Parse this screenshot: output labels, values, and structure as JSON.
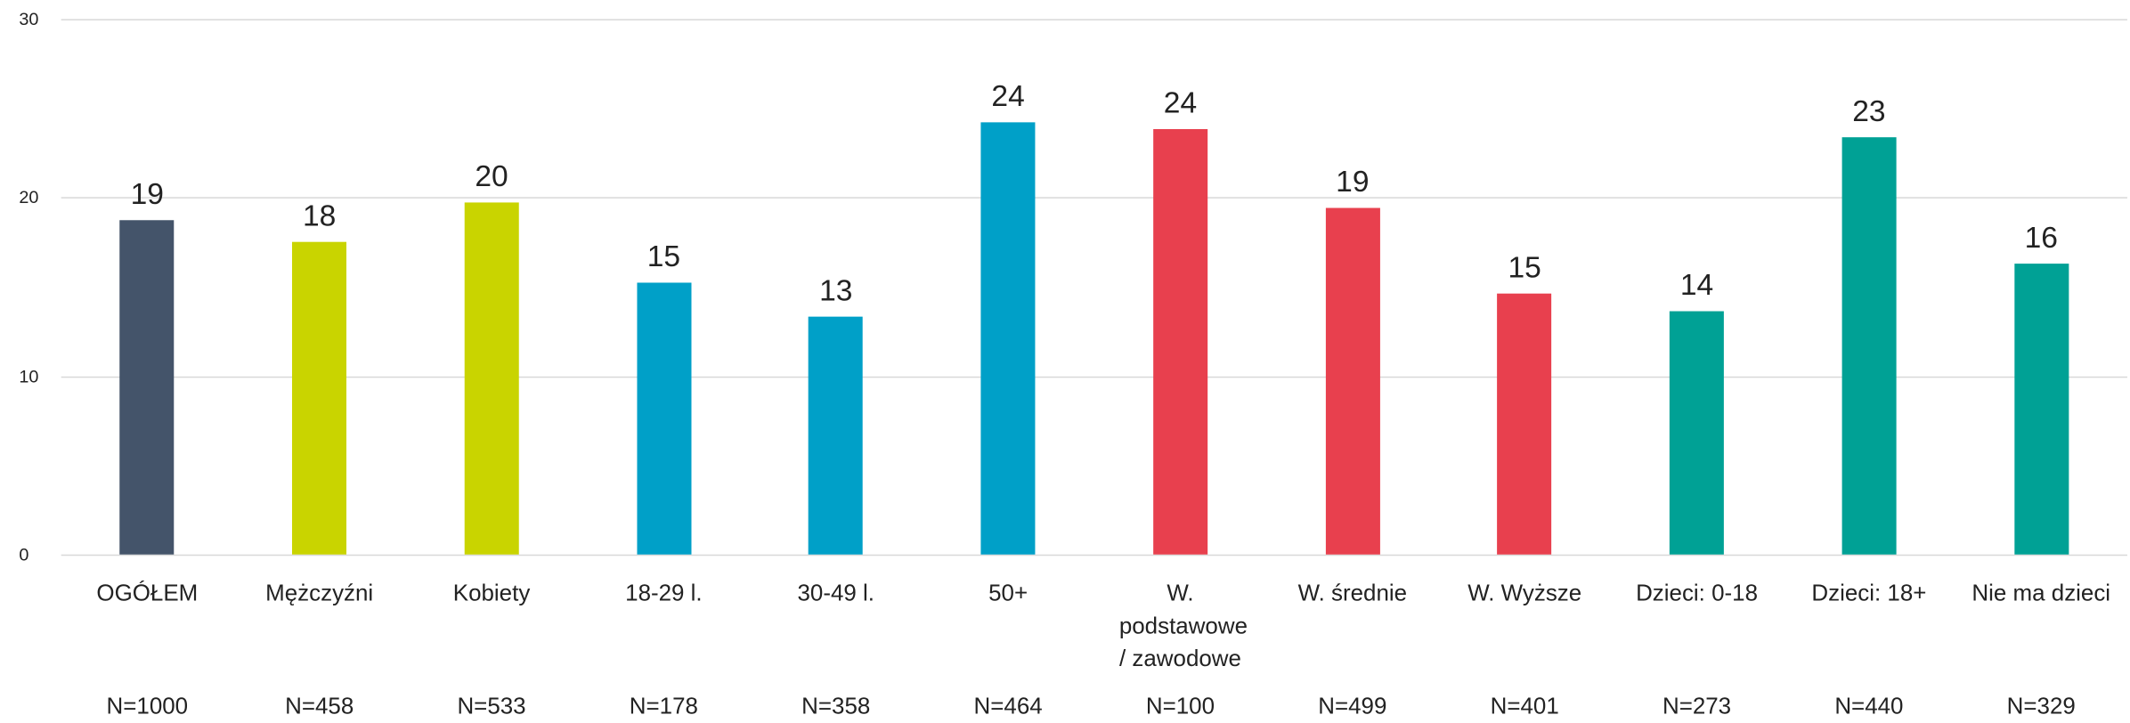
{
  "chart_data": {
    "type": "bar",
    "categories": [
      "OGÓŁEM",
      "Mężczyźni",
      "Kobiety",
      "18-29 l.",
      "30-49 l.",
      "50+",
      "W. podstawowe / zawodowe",
      "W. średnie",
      "W. Wyższe",
      "Dzieci: 0-18",
      "Dzieci: 18+",
      "Nie ma dzieci"
    ],
    "values": [
      18.7,
      17.5,
      19.7,
      15.2,
      13.3,
      24.2,
      23.8,
      19.4,
      14.6,
      13.6,
      23.4,
      16.3
    ],
    "value_labels": [
      "19",
      "18",
      "20",
      "15",
      "13",
      "24",
      "24",
      "19",
      "15",
      "14",
      "23",
      "16"
    ],
    "sample_sizes": [
      "N=1000",
      "N=458",
      "N=533",
      "N=178",
      "N=358",
      "N=464",
      "N=100",
      "N=499",
      "N=401",
      "N=273",
      "N=440",
      "N=329"
    ],
    "colors": [
      "#44546a",
      "#c9d400",
      "#c9d400",
      "#00a0c8",
      "#00a0c8",
      "#00a0c8",
      "#e8404e",
      "#e8404e",
      "#e8404e",
      "#00a195",
      "#00a195",
      "#00a195"
    ],
    "ylim": [
      0,
      30
    ],
    "yticks": [
      0,
      10,
      20,
      30
    ],
    "grid": true
  }
}
